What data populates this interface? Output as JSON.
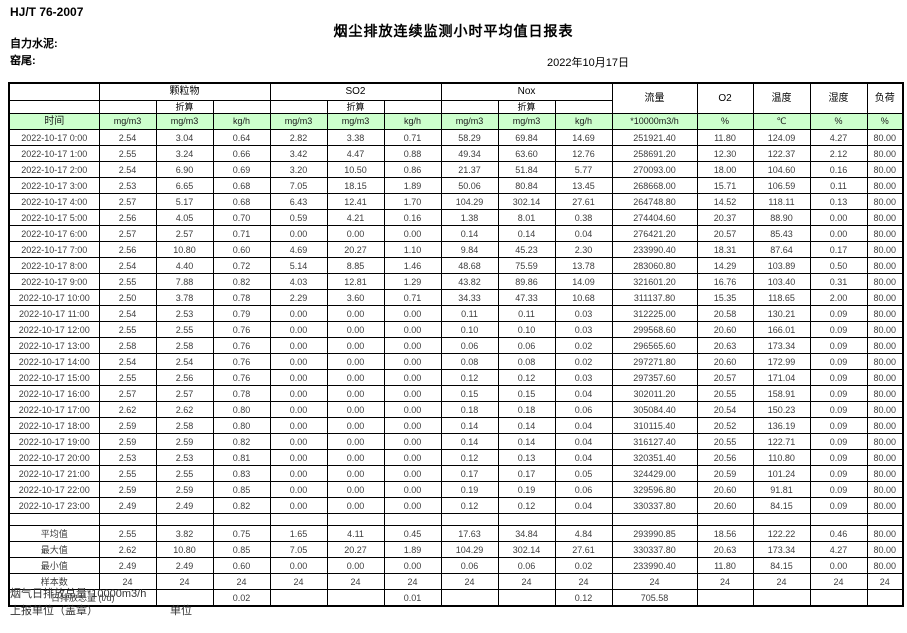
{
  "header": {
    "standard": "HJ/T 76-2007",
    "title": "烟尘排放连续监测小时平均值日报表",
    "company": "自力水泥:",
    "location": "窑尾:",
    "date": "2022年10月17日"
  },
  "table": {
    "time_label": "时间",
    "converted_label": "折算",
    "groups": [
      {
        "label": "颗粒物"
      },
      {
        "label": "SO2"
      },
      {
        "label": "Nox"
      }
    ],
    "single_headers": [
      "流量",
      "O2",
      "温度",
      "湿度",
      "负荷"
    ],
    "units": [
      "mg/m3",
      "mg/m3",
      "kg/h",
      "mg/m3",
      "mg/m3",
      "kg/h",
      "mg/m3",
      "mg/m3",
      "kg/h",
      "*10000m3/h",
      "%",
      "℃",
      "%",
      "%"
    ],
    "rows": [
      [
        "2022-10-17 0:00",
        "2.54",
        "3.04",
        "0.64",
        "2.82",
        "3.38",
        "0.71",
        "58.29",
        "69.84",
        "14.69",
        "251921.40",
        "11.80",
        "124.09",
        "4.27",
        "80.00"
      ],
      [
        "2022-10-17 1:00",
        "2.55",
        "3.24",
        "0.66",
        "3.42",
        "4.47",
        "0.88",
        "49.34",
        "63.60",
        "12.76",
        "258691.20",
        "12.30",
        "122.37",
        "2.12",
        "80.00"
      ],
      [
        "2022-10-17 2:00",
        "2.54",
        "6.90",
        "0.69",
        "3.20",
        "10.50",
        "0.86",
        "21.37",
        "51.84",
        "5.77",
        "270093.00",
        "18.00",
        "104.60",
        "0.16",
        "80.00"
      ],
      [
        "2022-10-17 3:00",
        "2.53",
        "6.65",
        "0.68",
        "7.05",
        "18.15",
        "1.89",
        "50.06",
        "80.84",
        "13.45",
        "268668.00",
        "15.71",
        "106.59",
        "0.11",
        "80.00"
      ],
      [
        "2022-10-17 4:00",
        "2.57",
        "5.17",
        "0.68",
        "6.43",
        "12.41",
        "1.70",
        "104.29",
        "302.14",
        "27.61",
        "264748.80",
        "14.52",
        "118.11",
        "0.13",
        "80.00"
      ],
      [
        "2022-10-17 5:00",
        "2.56",
        "4.05",
        "0.70",
        "0.59",
        "4.21",
        "0.16",
        "1.38",
        "8.01",
        "0.38",
        "274404.60",
        "20.37",
        "88.90",
        "0.00",
        "80.00"
      ],
      [
        "2022-10-17 6:00",
        "2.57",
        "2.57",
        "0.71",
        "0.00",
        "0.00",
        "0.00",
        "0.14",
        "0.14",
        "0.04",
        "276421.20",
        "20.57",
        "85.43",
        "0.00",
        "80.00"
      ],
      [
        "2022-10-17 7:00",
        "2.56",
        "10.80",
        "0.60",
        "4.69",
        "20.27",
        "1.10",
        "9.84",
        "45.23",
        "2.30",
        "233990.40",
        "18.31",
        "87.64",
        "0.17",
        "80.00"
      ],
      [
        "2022-10-17 8:00",
        "2.54",
        "4.40",
        "0.72",
        "5.14",
        "8.85",
        "1.46",
        "48.68",
        "75.59",
        "13.78",
        "283060.80",
        "14.29",
        "103.89",
        "0.50",
        "80.00"
      ],
      [
        "2022-10-17 9:00",
        "2.55",
        "7.88",
        "0.82",
        "4.03",
        "12.81",
        "1.29",
        "43.82",
        "89.86",
        "14.09",
        "321601.20",
        "16.76",
        "103.40",
        "0.31",
        "80.00"
      ],
      [
        "2022-10-17 10:00",
        "2.50",
        "3.78",
        "0.78",
        "2.29",
        "3.60",
        "0.71",
        "34.33",
        "47.33",
        "10.68",
        "311137.80",
        "15.35",
        "118.65",
        "2.00",
        "80.00"
      ],
      [
        "2022-10-17 11:00",
        "2.54",
        "2.53",
        "0.79",
        "0.00",
        "0.00",
        "0.00",
        "0.11",
        "0.11",
        "0.03",
        "312225.00",
        "20.58",
        "130.21",
        "0.09",
        "80.00"
      ],
      [
        "2022-10-17 12:00",
        "2.55",
        "2.55",
        "0.76",
        "0.00",
        "0.00",
        "0.00",
        "0.10",
        "0.10",
        "0.03",
        "299568.60",
        "20.60",
        "166.01",
        "0.09",
        "80.00"
      ],
      [
        "2022-10-17 13:00",
        "2.58",
        "2.58",
        "0.76",
        "0.00",
        "0.00",
        "0.00",
        "0.06",
        "0.06",
        "0.02",
        "296565.60",
        "20.63",
        "173.34",
        "0.09",
        "80.00"
      ],
      [
        "2022-10-17 14:00",
        "2.54",
        "2.54",
        "0.76",
        "0.00",
        "0.00",
        "0.00",
        "0.08",
        "0.08",
        "0.02",
        "297271.80",
        "20.60",
        "172.99",
        "0.09",
        "80.00"
      ],
      [
        "2022-10-17 15:00",
        "2.55",
        "2.56",
        "0.76",
        "0.00",
        "0.00",
        "0.00",
        "0.12",
        "0.12",
        "0.03",
        "297357.60",
        "20.57",
        "171.04",
        "0.09",
        "80.00"
      ],
      [
        "2022-10-17 16:00",
        "2.57",
        "2.57",
        "0.78",
        "0.00",
        "0.00",
        "0.00",
        "0.15",
        "0.15",
        "0.04",
        "302011.20",
        "20.55",
        "158.91",
        "0.09",
        "80.00"
      ],
      [
        "2022-10-17 17:00",
        "2.62",
        "2.62",
        "0.80",
        "0.00",
        "0.00",
        "0.00",
        "0.18",
        "0.18",
        "0.06",
        "305084.40",
        "20.54",
        "150.23",
        "0.09",
        "80.00"
      ],
      [
        "2022-10-17 18:00",
        "2.59",
        "2.58",
        "0.80",
        "0.00",
        "0.00",
        "0.00",
        "0.14",
        "0.14",
        "0.04",
        "310115.40",
        "20.52",
        "136.19",
        "0.09",
        "80.00"
      ],
      [
        "2022-10-17 19:00",
        "2.59",
        "2.59",
        "0.82",
        "0.00",
        "0.00",
        "0.00",
        "0.14",
        "0.14",
        "0.04",
        "316127.40",
        "20.55",
        "122.71",
        "0.09",
        "80.00"
      ],
      [
        "2022-10-17 20:00",
        "2.53",
        "2.53",
        "0.81",
        "0.00",
        "0.00",
        "0.00",
        "0.12",
        "0.13",
        "0.04",
        "320351.40",
        "20.56",
        "110.80",
        "0.09",
        "80.00"
      ],
      [
        "2022-10-17 21:00",
        "2.55",
        "2.55",
        "0.83",
        "0.00",
        "0.00",
        "0.00",
        "0.17",
        "0.17",
        "0.05",
        "324429.00",
        "20.59",
        "101.24",
        "0.09",
        "80.00"
      ],
      [
        "2022-10-17 22:00",
        "2.59",
        "2.59",
        "0.85",
        "0.00",
        "0.00",
        "0.00",
        "0.19",
        "0.19",
        "0.06",
        "329596.80",
        "20.60",
        "91.81",
        "0.09",
        "80.00"
      ],
      [
        "2022-10-17 23:00",
        "2.49",
        "2.49",
        "0.82",
        "0.00",
        "0.00",
        "0.00",
        "0.12",
        "0.12",
        "0.04",
        "330337.80",
        "20.60",
        "84.15",
        "0.09",
        "80.00"
      ]
    ],
    "summary_rows": [
      [
        "平均值",
        "2.55",
        "3.82",
        "0.75",
        "1.65",
        "4.11",
        "0.45",
        "17.63",
        "34.84",
        "4.84",
        "293990.85",
        "18.56",
        "122.22",
        "0.46",
        "80.00"
      ],
      [
        "最大值",
        "2.62",
        "10.80",
        "0.85",
        "7.05",
        "20.27",
        "1.89",
        "104.29",
        "302.14",
        "27.61",
        "330337.80",
        "20.63",
        "173.34",
        "4.27",
        "80.00"
      ],
      [
        "最小值",
        "2.49",
        "2.49",
        "0.60",
        "0.00",
        "0.00",
        "0.00",
        "0.06",
        "0.06",
        "0.02",
        "233990.40",
        "11.80",
        "84.15",
        "0.00",
        "80.00"
      ],
      [
        "样本数",
        "24",
        "24",
        "24",
        "24",
        "24",
        "24",
        "24",
        "24",
        "24",
        "24",
        "24",
        "24",
        "24",
        "24"
      ]
    ],
    "daily_total_row": {
      "label": "日排放总量 (t/d)",
      "values": [
        "",
        "0.02",
        "",
        "",
        "0.01",
        "",
        "",
        "0.12",
        "705.58",
        "",
        "",
        "",
        ""
      ]
    }
  },
  "footer": {
    "flue_gas_total": "烟气日排放总量*10000m3/h",
    "report_unit_label": "上报单位（盖章）",
    "unit_label": "单位"
  },
  "colors": {
    "header_green": "#ccffcc",
    "border": "#000000",
    "text": "#3c3c3c"
  }
}
